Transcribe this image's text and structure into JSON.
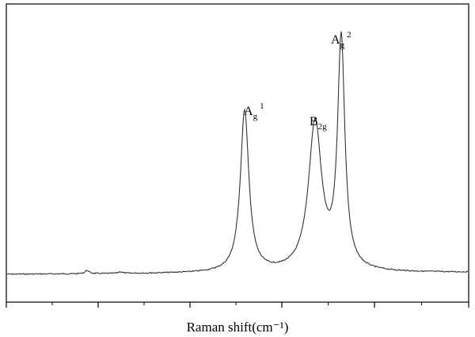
{
  "chart_data": {
    "type": "line",
    "title": "",
    "xlabel": "Raman shift(cm⁻¹)",
    "ylabel": "",
    "x_tick_labels_shown": false,
    "y_ticks_shown": false,
    "grid": false,
    "legend": "none",
    "line_color": "#333333",
    "series": [
      {
        "name": "",
        "baseline": 0.0,
        "peaks": [
          {
            "label_base": "A",
            "label_sub": "g",
            "label_sup": "1",
            "relative_intensity": 0.6
          },
          {
            "label_base": "B",
            "label_sub": "2g",
            "label_sup": "",
            "relative_intensity": 0.55
          },
          {
            "label_base": "A",
            "label_sub": "g",
            "label_sup": "2",
            "relative_intensity": 0.85
          }
        ]
      }
    ],
    "xlim": [
      0,
      1
    ],
    "ylim": [
      -0.1,
      1.0
    ]
  }
}
